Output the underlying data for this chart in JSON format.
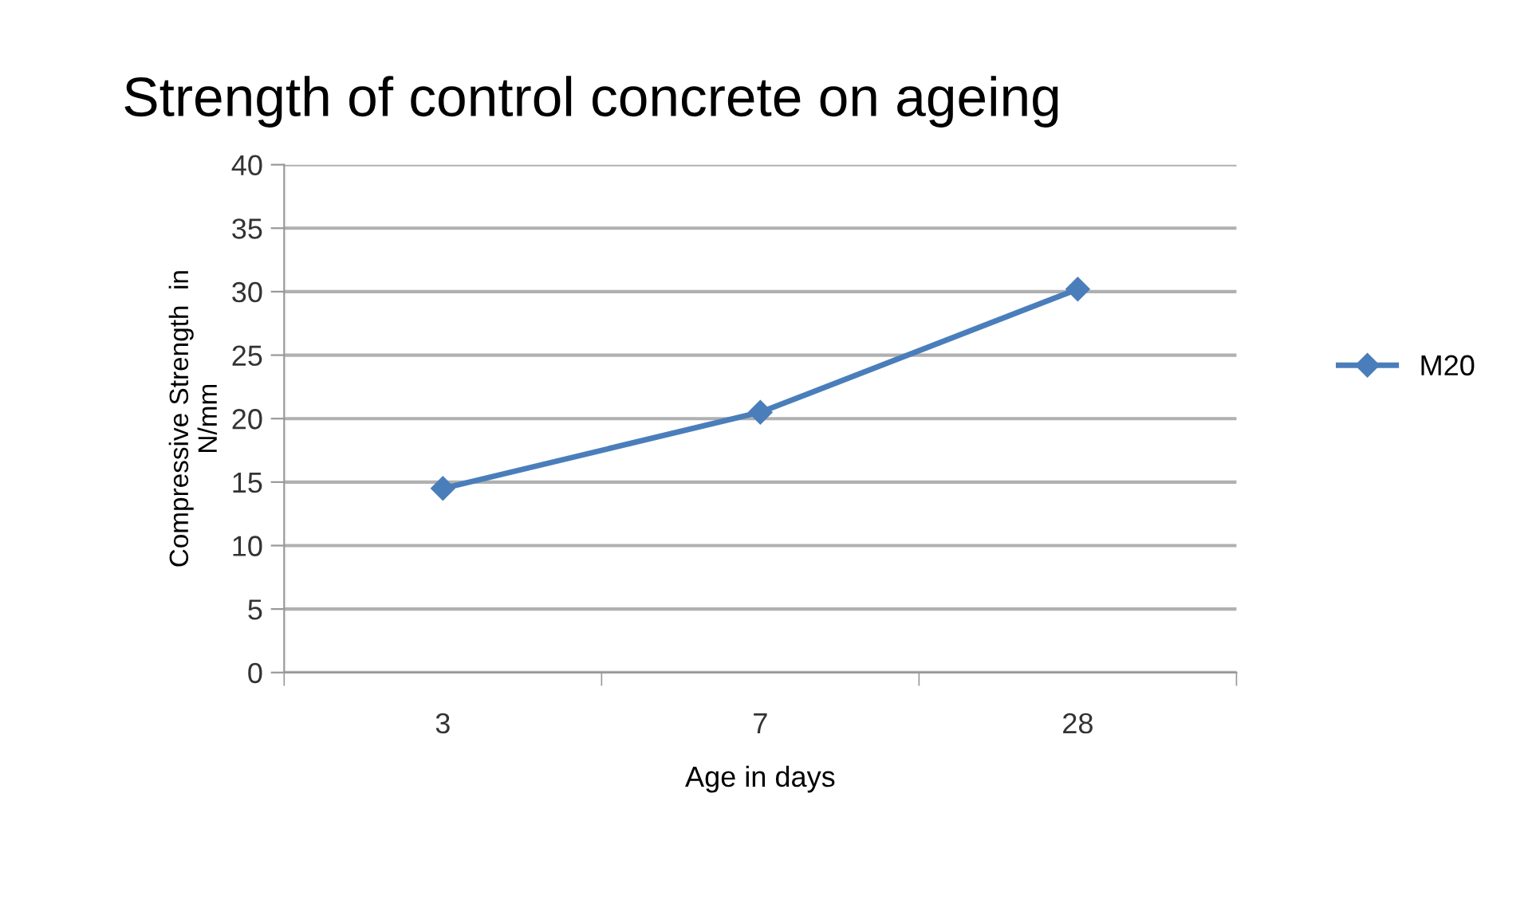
{
  "chart_data": {
    "type": "line",
    "title": "Strength of control concrete on ageing",
    "xlabel": "Age in days",
    "ylabel": "Compressive Strength  in\nN/mm",
    "categories": [
      "3",
      "7",
      "28"
    ],
    "series": [
      {
        "name": "M20",
        "color": "#4a7ebb",
        "values": [
          14.5,
          20.5,
          30.2
        ]
      }
    ],
    "ylim": [
      0,
      40
    ],
    "yticks": [
      0,
      5,
      10,
      15,
      20,
      25,
      30,
      35,
      40
    ],
    "grid": "y",
    "legend": "right",
    "marker": "diamond",
    "line_style": "solid"
  }
}
